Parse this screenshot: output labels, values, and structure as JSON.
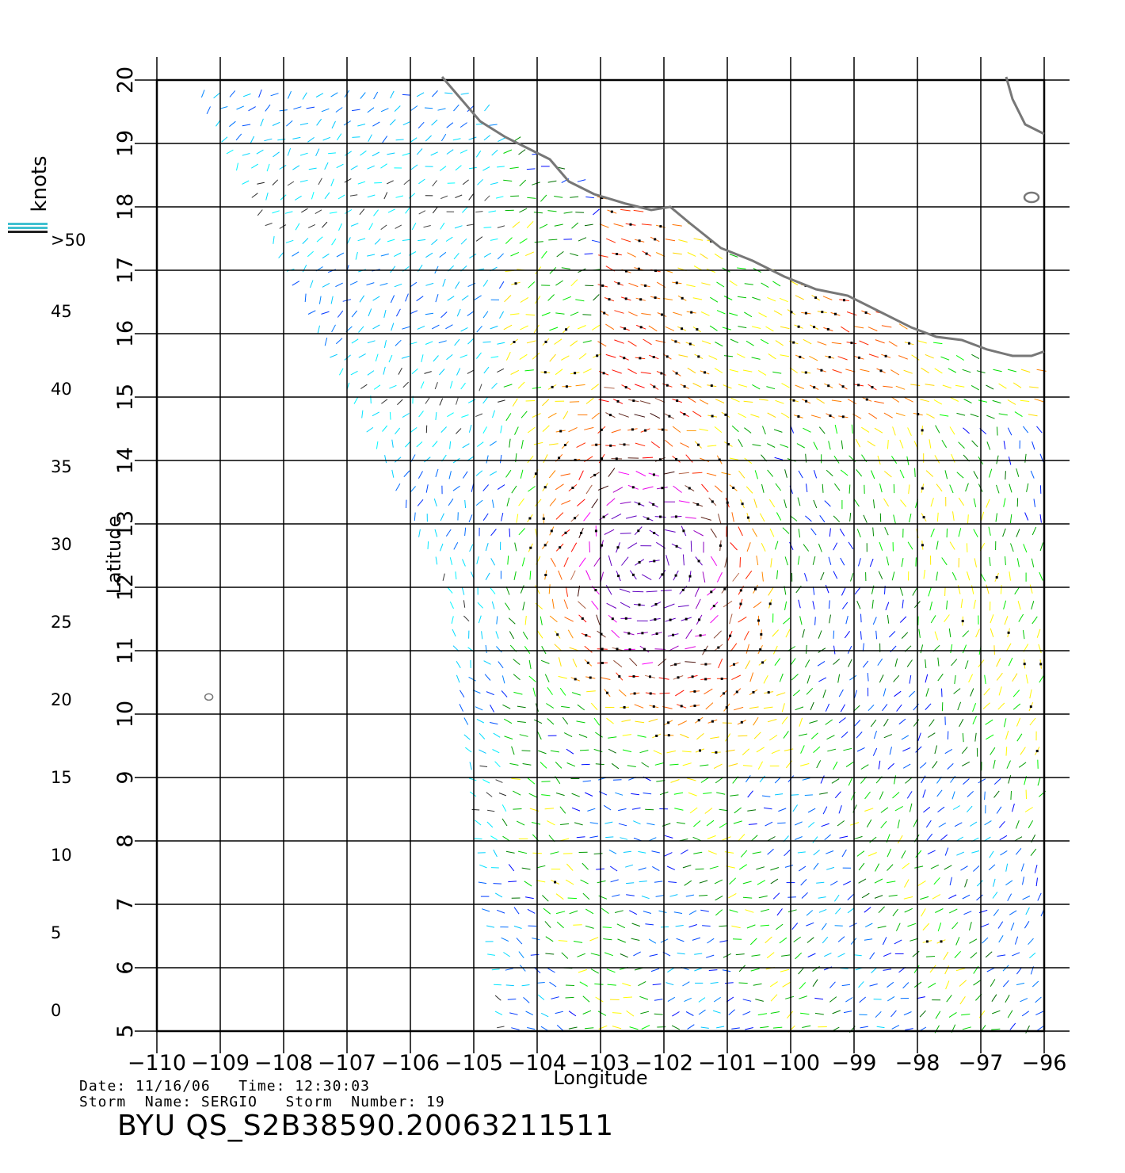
{
  "map": {
    "xlabel": "Longitude",
    "ylabel": "Latitude",
    "lon_range": [
      -110,
      -96
    ],
    "lat_range": [
      5,
      20
    ],
    "lon_ticks": [
      "−110",
      "−109",
      "−108",
      "−107",
      "−106",
      "−105",
      "−104",
      "−103",
      "−102",
      "−101",
      "−100",
      "−99",
      "−98",
      "−97",
      "−96"
    ],
    "lat_ticks": [
      "5",
      "6",
      "7",
      "8",
      "9",
      "10",
      "11",
      "12",
      "13",
      "14",
      "15",
      "16",
      "17",
      "18",
      "19",
      "20"
    ],
    "grid": true,
    "coastline_color": "#777777"
  },
  "legend": {
    "unit": "knots",
    "labels": [
      ">50",
      "45",
      "40",
      "35",
      "30",
      "25",
      "20",
      "15",
      "10",
      "5",
      "0"
    ],
    "color_bands": [
      {
        "min": 0,
        "max": 5,
        "from": "#888888",
        "to": "#222222"
      },
      {
        "min": 5,
        "max": 10,
        "from": "#00ffff",
        "to": "#00bfff"
      },
      {
        "min": 10,
        "max": 15,
        "from": "#0090ff",
        "to": "#0000ff"
      },
      {
        "min": 15,
        "max": 20,
        "from": "#006400",
        "to": "#00ff00"
      },
      {
        "min": 20,
        "max": 25,
        "from": "#ffff00",
        "to": "#ffcc00"
      },
      {
        "min": 25,
        "max": 30,
        "from": "#ff9900",
        "to": "#ff5500"
      },
      {
        "min": 30,
        "max": 35,
        "from": "#ff3300",
        "to": "#ff0000"
      },
      {
        "min": 35,
        "max": 40,
        "from": "#c07050",
        "to": "#300000"
      },
      {
        "min": 40,
        "max": 45,
        "from": "#ff00ff",
        "to": "#dd00dd"
      },
      {
        "min": 45,
        "max": 50,
        "from": "#b000c0",
        "to": "#6000c0"
      }
    ],
    "over_max_color": "#40c0d0"
  },
  "footer": {
    "date_label": "Date:",
    "date": "11/16/06",
    "time_label": "Time:",
    "time": "12:30:03",
    "storm_name_label": "Storm  Name:",
    "storm_name": "SERGIO",
    "storm_number_label": "Storm  Number:",
    "storm_number": "19",
    "product": "BYU  QS_S2B38590.20063211511"
  }
}
